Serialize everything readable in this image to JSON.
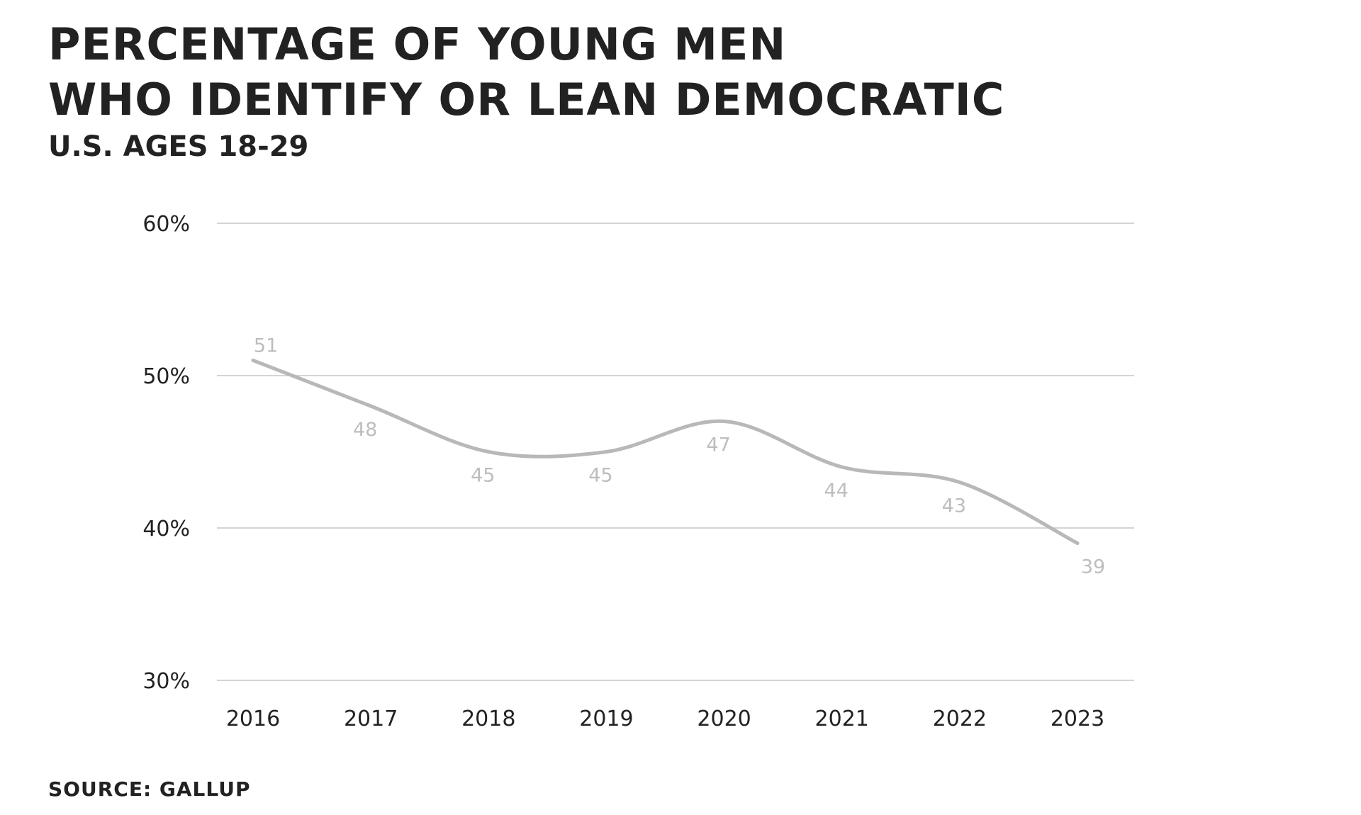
{
  "title_lines": [
    "PERCENTAGE OF YOUNG MEN",
    "WHO IDENTIFY OR LEAN DEMOCRATIC"
  ],
  "subtitle": "U.S. AGES 18-29",
  "source": "SOURCE: GALLUP",
  "colors": {
    "line": "#b8b8b8",
    "grid": "#d4d4d4",
    "data_label": "#bdbdbd",
    "text": "#222222"
  },
  "chart_data": {
    "type": "line",
    "title": "PERCENTAGE OF YOUNG MEN WHO IDENTIFY OR LEAN DEMOCRATIC",
    "subtitle": "U.S. AGES 18-29",
    "categories": [
      "2016",
      "2017",
      "2018",
      "2019",
      "2020",
      "2021",
      "2022",
      "2023"
    ],
    "series": [
      {
        "values": [
          51,
          48,
          45,
          45,
          47,
          44,
          43,
          39
        ]
      }
    ],
    "data_labels": [
      "51",
      "48",
      "45",
      "45",
      "47",
      "44",
      "43",
      "39"
    ],
    "ylim": [
      30,
      60
    ],
    "yticks": [
      60,
      50,
      40,
      30
    ],
    "ytick_labels": [
      "60%",
      "50%",
      "40%",
      "30%"
    ],
    "xlabel": "",
    "ylabel": "",
    "grid": true,
    "legend": "none"
  }
}
